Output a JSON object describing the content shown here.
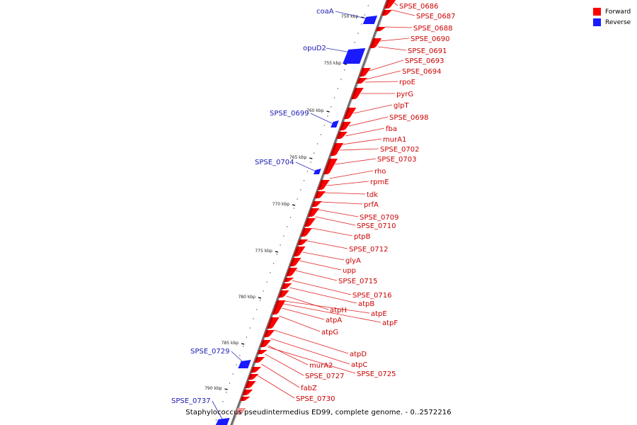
{
  "caption": "Staphylococcus pseudintermedius ED99, complete genome. - 0..2572216",
  "legend": [
    {
      "label": "Forward",
      "color": "#ff0000"
    },
    {
      "label": "Reverse",
      "color": "#1a1aff"
    }
  ],
  "colors": {
    "forward": "#ff0000",
    "reverse": "#1a1aff",
    "backbone": "#808080",
    "label_forward": "#cc0000",
    "label_reverse": "#1a1ab4"
  },
  "ticks": [
    "750 kbp",
    "755 kbp",
    "760 kbp",
    "765 kbp",
    "770 kbp",
    "775 kbp",
    "780 kbp",
    "785 kbp",
    "790 kbp"
  ],
  "forward_labels": [
    "SPSE_0686",
    "SPSE_0687",
    "SPSE_0688",
    "SPSE_0690",
    "SPSE_0691",
    "SPSE_0693",
    "SPSE_0694",
    "rpoE",
    "pyrG",
    "glpT",
    "SPSE_0698",
    "fba",
    "murA1",
    "SPSE_0702",
    "SPSE_0703",
    "rho",
    "rpmE",
    "tdk",
    "prfA",
    "SPSE_0709",
    "SPSE_0710",
    "ptpB",
    "SPSE_0712",
    "glyA",
    "upp",
    "SPSE_0715",
    "SPSE_0716",
    "atpB",
    "atpH",
    "atpE",
    "atpA",
    "atpF",
    "atpG",
    "atpD",
    "atpC",
    "murA2",
    "SPSE_0725",
    "SPSE_0727",
    "fabZ",
    "SPSE_0730"
  ],
  "reverse_labels": [
    "coaA",
    "opuD2",
    "SPSE_0699",
    "SPSE_0704",
    "SPSE_0729",
    "SPSE_0737"
  ]
}
